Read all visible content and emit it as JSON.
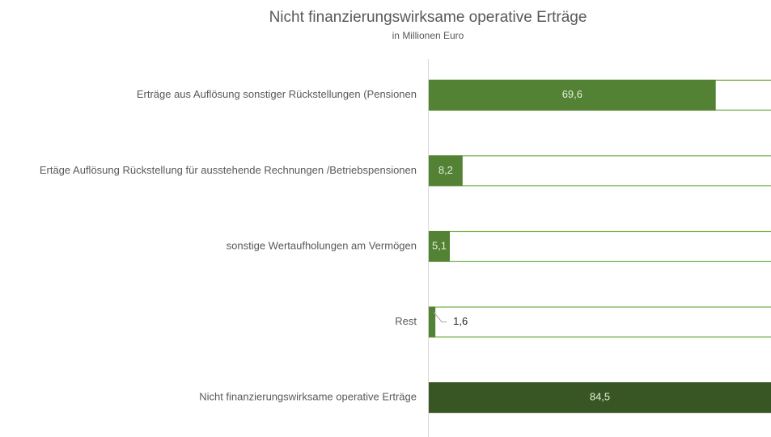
{
  "chart_data": {
    "type": "barh",
    "title": "Nicht finanzierungswirksame operative Erträge",
    "subtitle": "in Millionen Euro",
    "categories": [
      "Erträge aus Auflösung sonstiger Rückstellungen (Pensionen",
      "Ertäge Auflösung Rückstellung für ausstehende Rechnungen /Betriebspensionen",
      "sonstige Wertaufholungen am Vermögen",
      "Rest",
      "Nicht finanzierungswirksame operative Erträge"
    ],
    "values": [
      69.6,
      8.2,
      5.1,
      1.6,
      84.5
    ],
    "value_labels": [
      "69,6",
      "8,2",
      "5,1",
      "1,6",
      "84,5"
    ],
    "colors": [
      "#548235",
      "#548235",
      "#548235",
      "#548235",
      "#375623"
    ],
    "xlim": [
      0,
      83
    ]
  }
}
